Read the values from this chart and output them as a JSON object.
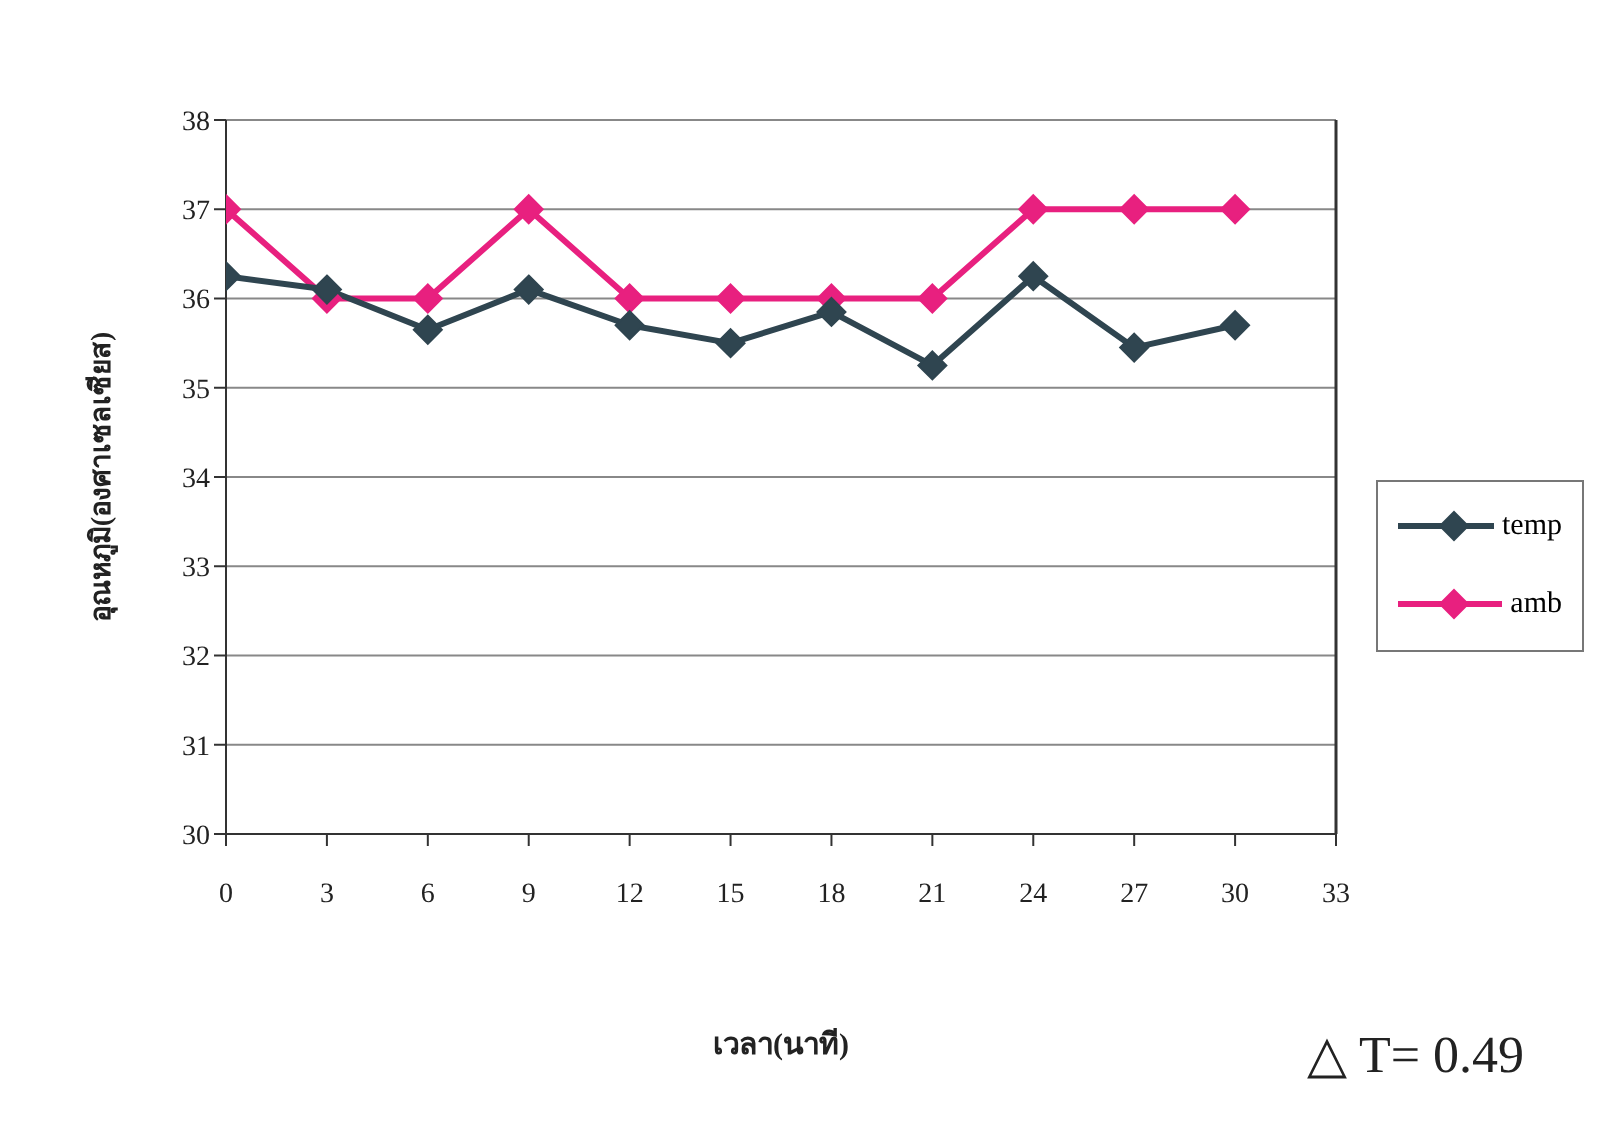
{
  "chart_data": {
    "type": "line",
    "xlabel": "เวลา(นาที)",
    "ylabel": "อุณหภูมิ(องศาเซลเซียส)",
    "x": [
      0,
      3,
      6,
      9,
      12,
      15,
      18,
      21,
      24,
      27,
      30
    ],
    "series": [
      {
        "name": "temp",
        "color": "#2f4550",
        "values": [
          36.25,
          36.1,
          35.65,
          36.1,
          35.7,
          35.5,
          35.85,
          35.25,
          36.25,
          35.45,
          35.7
        ]
      },
      {
        "name": "amb",
        "color": "#e8207f",
        "values": [
          37,
          36,
          36,
          37,
          36,
          36,
          36,
          36,
          37,
          37,
          37
        ]
      }
    ],
    "xlim": [
      0,
      33
    ],
    "xticks": [
      0,
      3,
      6,
      9,
      12,
      15,
      18,
      21,
      24,
      27,
      30,
      33
    ],
    "ylim": [
      30,
      38
    ],
    "yticks": [
      30,
      31,
      32,
      33,
      34,
      35,
      36,
      37,
      38
    ],
    "grid": "y",
    "legend": "right",
    "marker": "diamond",
    "line_style": "solid",
    "annotations": [
      "△ T= 0.49"
    ]
  }
}
